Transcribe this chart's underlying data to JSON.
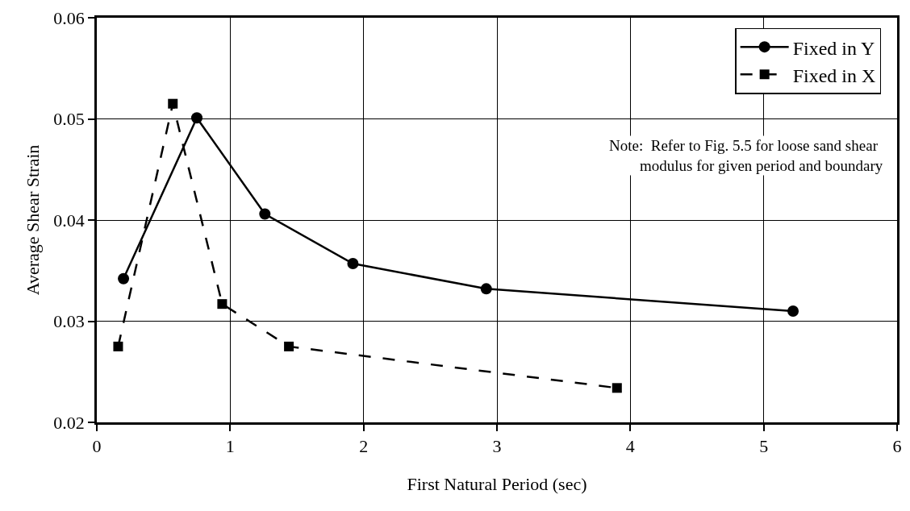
{
  "chart_data": {
    "type": "line",
    "xlabel": "First Natural Period (sec)",
    "ylabel": "Average Shear Strain",
    "xlim": [
      0,
      6
    ],
    "xticks": [
      0,
      1,
      2,
      3,
      4,
      5,
      6
    ],
    "ylim": [
      0.02,
      0.06
    ],
    "yticks": [
      0.02,
      0.03,
      0.04,
      0.05,
      0.06
    ],
    "grid": true,
    "legend": "top right",
    "series": [
      {
        "name": "Fixed in Y",
        "color": "#000000",
        "marker": "circle",
        "line_style": "solid",
        "x": [
          0.2,
          0.75,
          1.26,
          1.92,
          2.92,
          5.22
        ],
        "values": [
          0.0342,
          0.0501,
          0.0406,
          0.0357,
          0.0332,
          0.031
        ]
      },
      {
        "name": "Fixed in X",
        "color": "#000000",
        "marker": "square",
        "line_style": "dashed",
        "x": [
          0.16,
          0.57,
          0.94,
          1.44,
          3.9
        ],
        "values": [
          0.0275,
          0.0515,
          0.0317,
          0.0275,
          0.0234
        ]
      }
    ],
    "annotations": [
      "Note:  Refer to Fig. 5.5 for loose sand shear\n        modulus for given period and boundary"
    ]
  }
}
